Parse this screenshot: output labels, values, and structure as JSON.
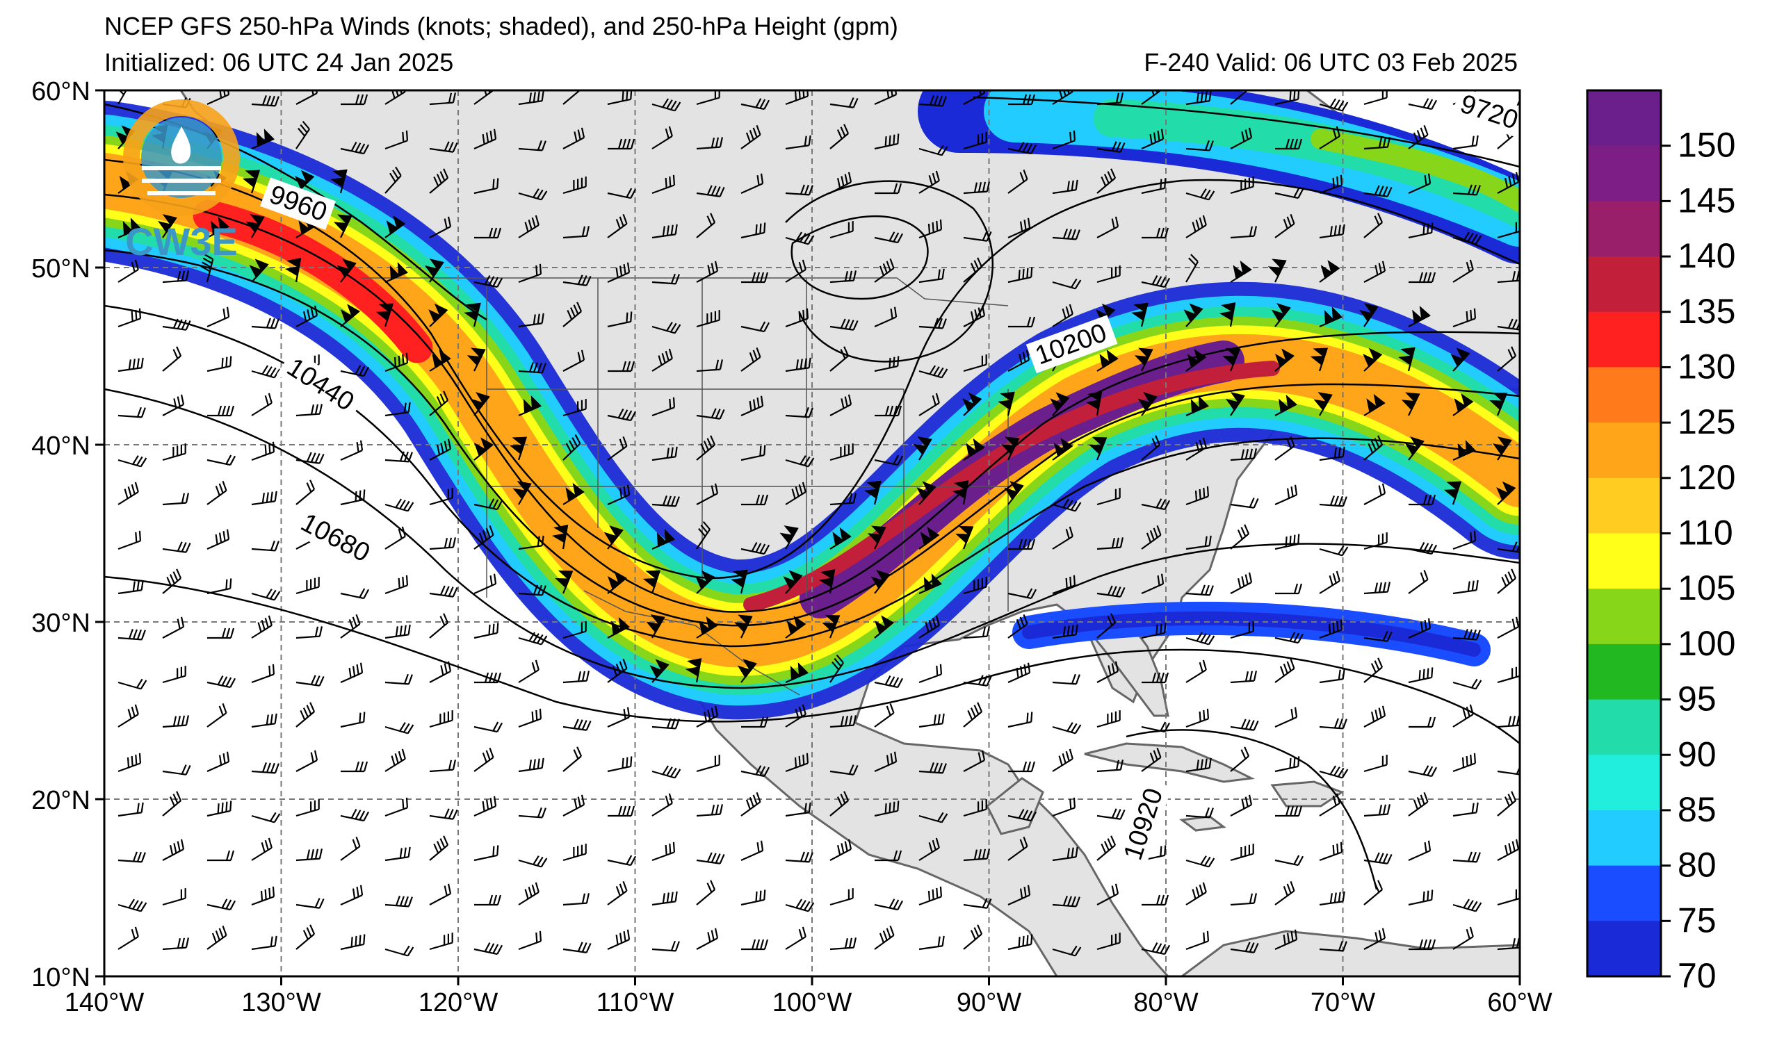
{
  "header": {
    "title": "NCEP GFS 250-hPa Winds (knots; shaded), and 250-hPa Height (gpm)",
    "initialized": "Initialized: 06 UTC 24 Jan 2025",
    "valid": "F-240  Valid: 06 UTC 03 Feb 2025"
  },
  "logo": {
    "text": "CW3E"
  },
  "axes": {
    "lon_ticks": [
      "140°W",
      "130°W",
      "120°W",
      "110°W",
      "100°W",
      "90°W",
      "80°W",
      "70°W",
      "60°W"
    ],
    "lat_ticks": [
      "60°N",
      "50°N",
      "40°N",
      "30°N",
      "20°N",
      "10°N"
    ],
    "lon_range": [
      -140,
      -60
    ],
    "lat_range": [
      10,
      60
    ]
  },
  "colorbar": {
    "labels": [
      "150",
      "145",
      "140",
      "135",
      "130",
      "125",
      "120",
      "110",
      "105",
      "100",
      "95",
      "90",
      "85",
      "80",
      "75",
      "70"
    ],
    "colors": [
      "#6a1f8c",
      "#7d1e86",
      "#9a1f6a",
      "#c21f3a",
      "#ff2020",
      "#ff7a1a",
      "#ffa51a",
      "#ffcc22",
      "#ffff1a",
      "#88d61a",
      "#22b822",
      "#22ddaa",
      "#22eedd",
      "#22ccff",
      "#1a4dff",
      "#1a2ad6"
    ]
  },
  "contours": {
    "labels": [
      "9720",
      "9960",
      "10200",
      "10440",
      "10680",
      "10920"
    ]
  },
  "colors": {
    "land": "#e3e3e3",
    "ocean": "#ffffff",
    "grid": "#777777",
    "coast": "#666666"
  }
}
